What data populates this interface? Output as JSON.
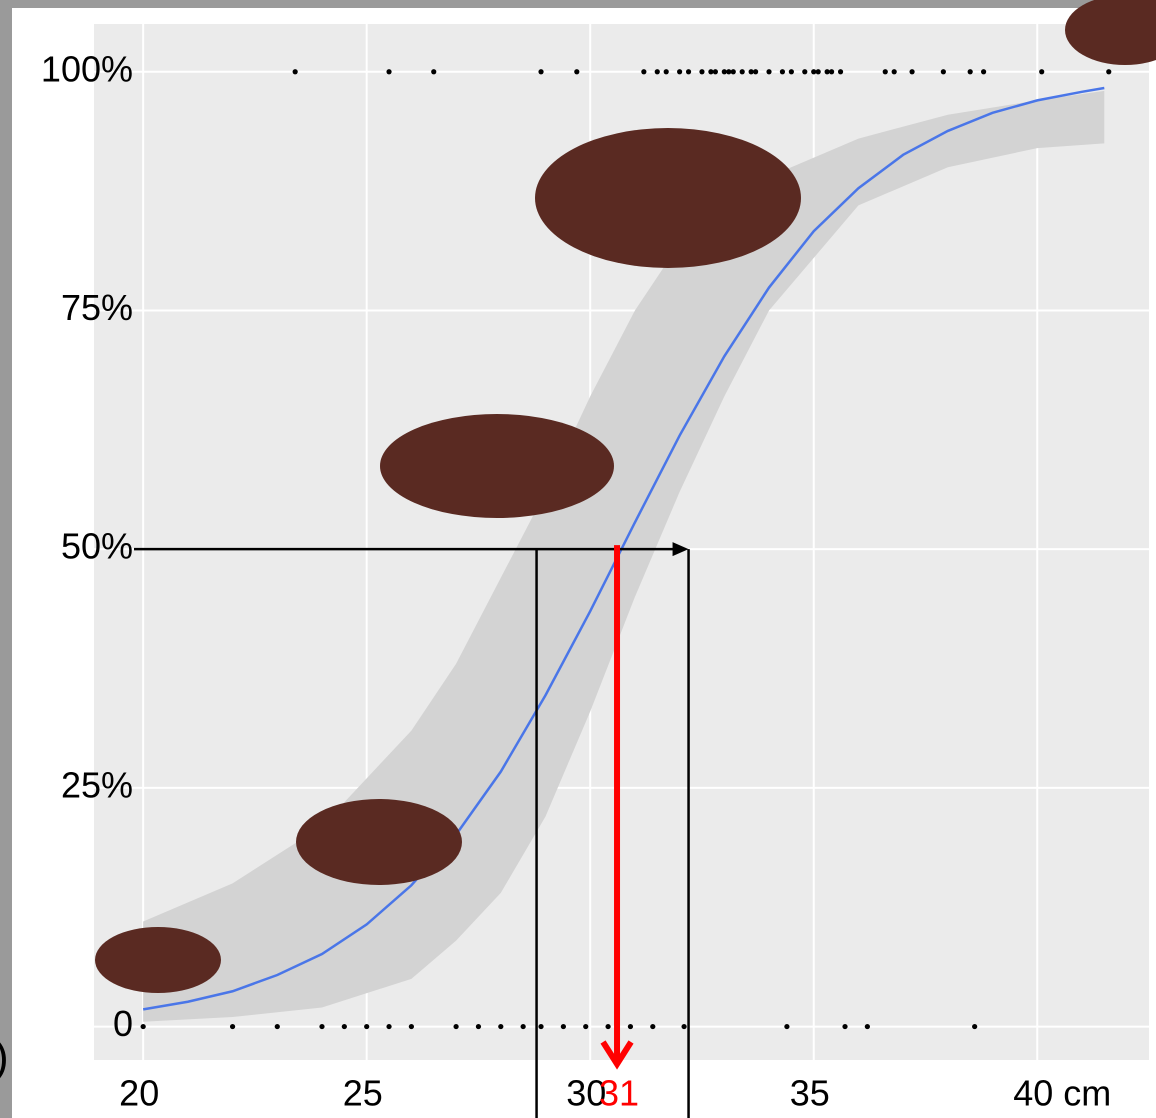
{
  "chart_data": {
    "type": "line",
    "color": "#4a76e8",
    "x": [
      20,
      21,
      22,
      23,
      24,
      25,
      26,
      27,
      28,
      29,
      30,
      31,
      32,
      33,
      34,
      35,
      36,
      37,
      38,
      39,
      40,
      41,
      41.5
    ],
    "values": [
      1.8,
      2.6,
      3.7,
      5.4,
      7.6,
      10.7,
      14.8,
      20.1,
      26.7,
      34.7,
      43.5,
      52.8,
      61.9,
      70.2,
      77.4,
      83.3,
      87.8,
      91.3,
      93.8,
      95.7,
      97.0,
      97.9,
      98.3
    ],
    "band": {
      "color": "#d3d3d3",
      "x": [
        20,
        22,
        24,
        26,
        27,
        28,
        29,
        30,
        31,
        32,
        33,
        34,
        36,
        38,
        40,
        41.5
      ],
      "lower": [
        0.5,
        1,
        2,
        5,
        9,
        14,
        22,
        33,
        45,
        56,
        66,
        75,
        86,
        90,
        92,
        92.5
      ],
      "upper": [
        11,
        15,
        21,
        31,
        38,
        47,
        56,
        66,
        75,
        82,
        86,
        89,
        93,
        95.5,
        97,
        98
      ]
    },
    "points": {
      "color": "#000000",
      "x": [
        23.4,
        25.5,
        26.5,
        28.9,
        29.7,
        31.2,
        31.5,
        31.7,
        32.0,
        32.2,
        32.5,
        32.7,
        32.8,
        33.0,
        33.1,
        33.2,
        33.4,
        33.6,
        33.7,
        34.0,
        34.3,
        34.5,
        34.8,
        35.0,
        35.1,
        35.3,
        35.4,
        35.6,
        36.6,
        36.8,
        37.2,
        37.9,
        38.5,
        38.8,
        40.1,
        41.6,
        20.0,
        22.0,
        23.0,
        24.0,
        24.5,
        25.0,
        25.5,
        26.0,
        27.0,
        27.5,
        28.0,
        28.5,
        28.9,
        29.4,
        29.9,
        30.4,
        30.9,
        31.4,
        32.1,
        34.4,
        35.7,
        36.2,
        38.6
      ],
      "values": [
        100,
        100,
        100,
        100,
        100,
        100,
        100,
        100,
        100,
        100,
        100,
        100,
        100,
        100,
        100,
        100,
        100,
        100,
        100,
        100,
        100,
        100,
        100,
        100,
        100,
        100,
        100,
        100,
        100,
        100,
        100,
        100,
        100,
        100,
        100,
        100,
        0,
        0,
        0,
        0,
        0,
        0,
        0,
        0,
        0,
        0,
        0,
        0,
        0,
        0,
        0,
        0,
        0,
        0,
        0,
        0,
        0,
        0,
        0
      ]
    },
    "reference": {
      "y": 50,
      "x_low": 28.8,
      "x_mid": 30.6,
      "x_high": 32.2
    },
    "annotation": "31",
    "annotation_color": "#ff0000",
    "xlim": [
      18.9,
      42.5
    ],
    "ylim": [
      -3.5,
      105
    ],
    "xticks": [
      20,
      25,
      30,
      35,
      {
        "value": 40,
        "label": "40 cm"
      }
    ],
    "yticks": [
      0,
      {
        "value": 25,
        "label": "25%"
      },
      {
        "value": 50,
        "label": "50%"
      },
      {
        "value": 75,
        "label": "75%"
      },
      {
        "value": 100,
        "label": "100%"
      }
    ],
    "grid": true
  }
}
